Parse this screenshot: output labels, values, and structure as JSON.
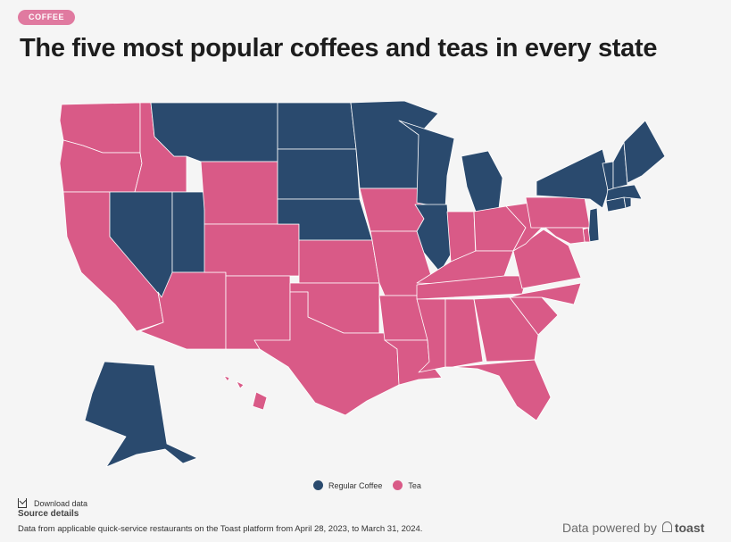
{
  "header": {
    "tag": "COFFEE",
    "title": "The five most popular coffees and teas in every state"
  },
  "colors": {
    "regular_coffee": "#2a4a6e",
    "tea": "#d95a87",
    "border": "#ffffff"
  },
  "legend": {
    "items": [
      {
        "label": "Regular Coffee",
        "color": "#2a4a6e"
      },
      {
        "label": "Tea",
        "color": "#d95a87"
      }
    ]
  },
  "states": {
    "WA": "Tea",
    "OR": "Tea",
    "CA": "Tea",
    "ID": "Tea",
    "NV": "Regular Coffee",
    "UT": "Regular Coffee",
    "AZ": "Tea",
    "MT": "Regular Coffee",
    "WY": "Tea",
    "CO": "Tea",
    "NM": "Tea",
    "ND": "Regular Coffee",
    "SD": "Regular Coffee",
    "NE": "Regular Coffee",
    "KS": "Tea",
    "OK": "Tea",
    "TX": "Tea",
    "MN": "Regular Coffee",
    "IA": "Tea",
    "MO": "Tea",
    "AR": "Tea",
    "LA": "Tea",
    "WI": "Regular Coffee",
    "IL": "Regular Coffee",
    "MI": "Regular Coffee",
    "IN": "Tea",
    "OH": "Tea",
    "KY": "Tea",
    "TN": "Tea",
    "MS": "Tea",
    "AL": "Tea",
    "GA": "Tea",
    "FL": "Tea",
    "SC": "Tea",
    "NC": "Tea",
    "VA": "Tea",
    "WV": "Tea",
    "PA": "Tea",
    "NY": "Regular Coffee",
    "NJ": "Regular Coffee",
    "DE": "Tea",
    "MD": "Tea",
    "CT": "Regular Coffee",
    "RI": "Regular Coffee",
    "MA": "Regular Coffee",
    "VT": "Regular Coffee",
    "NH": "Regular Coffee",
    "ME": "Regular Coffee",
    "AK": "Regular Coffee",
    "HI": "Tea"
  },
  "footer": {
    "download_label": "Download data",
    "source_details": "Source details",
    "source_note": "Data from applicable quick-service restaurants on the Toast platform from April 28, 2023, to March 31, 2024.",
    "powered_by": "Data powered by",
    "brand": "toast"
  }
}
